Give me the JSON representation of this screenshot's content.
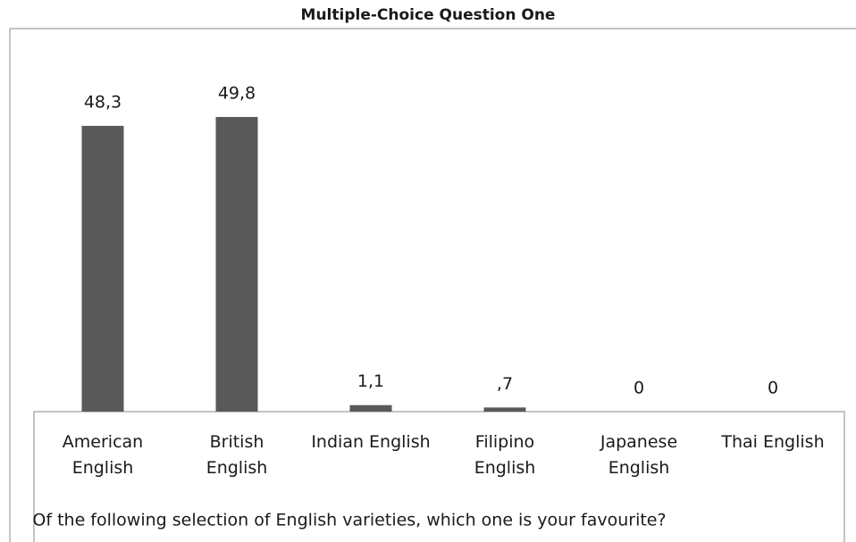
{
  "chart_data": {
    "type": "bar",
    "title": "Multiple-Choice Question One",
    "x_label": "Of the following selection of English varieties, which one is your favourite?",
    "categories": [
      "American\nEnglish",
      "British\nEnglish",
      "Indian English",
      "Filipino\nEnglish",
      "Japanese\nEnglish",
      "Thai English"
    ],
    "values": [
      48.3,
      49.8,
      1.1,
      0.7,
      0,
      0
    ],
    "value_labels": [
      "48,3",
      "49,8",
      "1,1",
      ",7",
      "0",
      "0"
    ],
    "color": "#595959"
  }
}
